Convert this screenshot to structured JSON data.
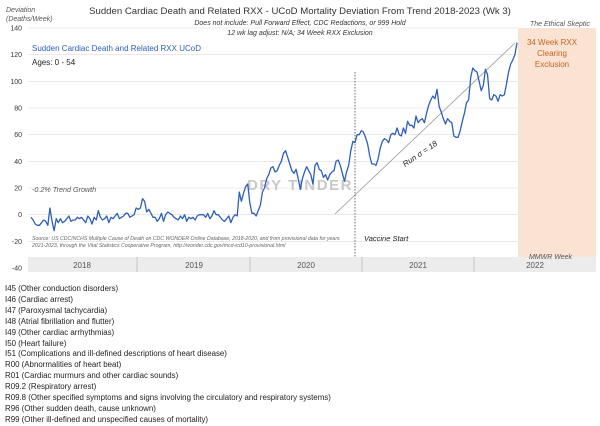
{
  "chart_data": {
    "type": "line",
    "title": "Sudden Cardiac Death and Related RXX - UCoD Mortality Deviation From Trend  2018-2023 (Wk 3)",
    "subtitle_lines": [
      "Does not include: Pull Forward Effect,  CDC Redactions, or 999 Hold",
      "12 wk lag adjust: N/A; 34 Week RXX Exclusion"
    ],
    "brand": "The Ethical Skeptic",
    "ylabel_lines": [
      "Deviation",
      "(Deaths/Week)"
    ],
    "xlabel": "MMWR Week",
    "ylim": [
      -40,
      140
    ],
    "y_ticks": [
      -40,
      -20,
      0,
      20,
      40,
      60,
      80,
      100,
      120,
      140
    ],
    "year_labels": [
      "2018",
      "2019",
      "2020",
      "2021",
      "2022"
    ],
    "legend_title": "Sudden Cardiac Death and Related RXX UCoD",
    "ages": "Ages: 0 - 54",
    "trend_note": "-0.2% Trend Growth",
    "run_label": "Run σ = 18",
    "vaccine_label": "Vaccine Start",
    "exclusion_label": [
      "34 Week RXX",
      "Clearing",
      "Exclusion"
    ],
    "watermark": "DRY TINDER",
    "source_note": [
      "Source: US CDC/NCHS Multiple Cause of Death on CDC WONDER Online Database, 2018-2020, and from provisional data for years",
      "2021-2023, through the Vital Statistics Cooperative Program, http://wonder.cdc.gov/mcd-icd10-provisional.html"
    ],
    "series": [
      {
        "values": [
          -2,
          -4,
          -7,
          -8,
          -8,
          -6,
          -4,
          -5,
          -8,
          5,
          -5,
          -12,
          -3,
          -6,
          -3,
          -6,
          -5,
          -3,
          -1,
          -5,
          -4,
          -4,
          -2,
          -3,
          -2,
          -4,
          -6,
          -1,
          -3,
          -7,
          -2,
          -4,
          3,
          -2,
          -4,
          -3,
          -1,
          -6,
          -2,
          -3,
          -1,
          1,
          -3,
          -2,
          -1,
          1,
          1,
          -2,
          -1,
          0,
          5,
          4,
          5,
          12,
          10,
          2,
          4,
          1,
          -2,
          -2,
          -5,
          -3,
          1,
          -5,
          0,
          2,
          1,
          0,
          -2,
          -3,
          -4,
          -1,
          -3,
          0,
          -5,
          -2,
          -3,
          -2,
          -4,
          -1,
          0,
          0,
          0,
          -2,
          1,
          -3,
          -1,
          3,
          0,
          0,
          -2,
          -4,
          -5,
          -3,
          -1,
          -6,
          -2,
          0,
          -1,
          17,
          10,
          16,
          21,
          23,
          9,
          1,
          1,
          -1,
          3,
          7,
          17,
          20,
          27,
          30,
          35,
          36,
          32,
          33,
          37,
          40,
          46,
          48,
          43,
          38,
          33,
          31,
          34,
          27,
          19,
          27,
          32,
          36,
          33,
          30,
          23,
          37,
          39,
          34,
          33,
          28,
          30,
          26,
          30,
          32,
          33,
          40,
          41,
          37,
          31,
          25,
          32,
          37,
          48,
          55,
          54,
          60,
          60,
          63,
          62,
          58,
          53,
          44,
          38,
          38,
          37,
          42,
          50,
          55,
          57,
          56,
          54,
          60,
          61,
          60,
          65,
          60,
          59,
          65,
          61,
          70,
          67,
          67,
          65,
          74,
          69,
          71,
          72,
          69,
          76,
          82,
          86,
          89,
          87,
          94,
          81,
          77,
          72,
          68,
          72,
          70,
          69,
          59,
          58,
          58,
          63,
          70,
          76,
          84,
          86,
          103,
          110,
          108,
          107,
          100,
          93,
          97,
          109,
          105,
          87,
          86,
          90,
          89,
          85,
          90,
          89,
          90,
          98,
          107,
          113,
          116,
          120,
          129
        ]
      }
    ]
  },
  "icd_codes": [
    "I45 (Other conduction  disorders)",
    "I46 (Cardiac arrest)",
    "I47 (Paroxysmal tachycardia)",
    "I48 (Atrial fibrillation and flutter)",
    "I49 (Other cardiac arrhythmias)",
    "I50 (Heart failure)",
    "I51 (Complications  and ill-defined  descriptions of heart disease)",
    "R00 (Abnormalities of heart beat)",
    "R01 (Cardiac murmurs and other cardiac sounds)",
    "R09.2 (Respiratory arrest)",
    "R09.8 (Other specified symptoms and signs involving  the circulatory and respiratory systems)",
    "R96 (Other sudden death, cause unknown)",
    "R99 (Other ill-defined and unspecified causes of mortality)"
  ],
  "colors": {
    "series": "#2e5fb8",
    "legend_text": "#2e5fb8",
    "exclusion_fill": "#fbe3d4",
    "exclusion_text": "#c5631e",
    "grid": "#dcdcdc",
    "year_band": "#ececec",
    "trend": "#9a9a9a"
  }
}
